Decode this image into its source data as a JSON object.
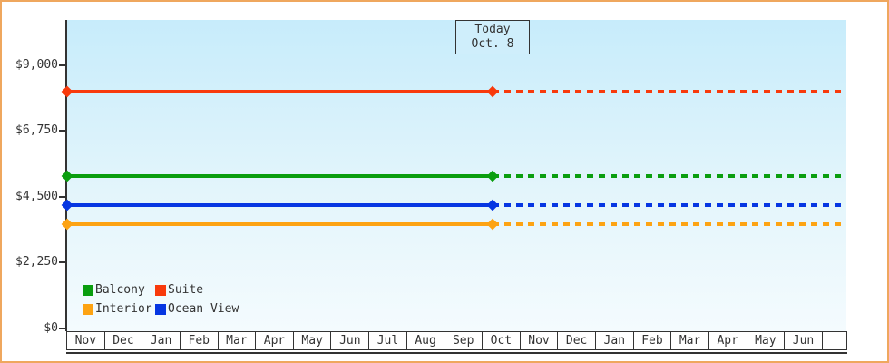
{
  "chart_data": {
    "type": "line",
    "title": "",
    "x_categories": [
      "Nov",
      "Dec",
      "Jan",
      "Feb",
      "Mar",
      "Apr",
      "May",
      "Jun",
      "Jul",
      "Aug",
      "Sep",
      "Oct",
      "Nov",
      "Dec",
      "Jan",
      "Feb",
      "Mar",
      "Apr",
      "May",
      "Jun"
    ],
    "y_axis": {
      "range": [
        0,
        9000
      ],
      "ticks": [
        {
          "label": "$9,000",
          "value": 9000
        },
        {
          "label": "$6,750",
          "value": 6750
        },
        {
          "label": "$4,500",
          "value": 4500
        },
        {
          "label": "$2,250",
          "value": 2250
        },
        {
          "label": "$0",
          "value": 0
        }
      ]
    },
    "series": [
      {
        "name": "Balcony",
        "color": "#0a9e0f",
        "value": 5185
      },
      {
        "name": "Suite",
        "color": "#f83a0c",
        "value": 8070
      },
      {
        "name": "Interior",
        "color": "#fda313",
        "value": 3550
      },
      {
        "name": "Ocean View",
        "color": "#0636e2",
        "value": 4190
      }
    ],
    "today": {
      "label": "Today",
      "date": "Oct. 8",
      "month_index": 11,
      "day_fraction": 0.26
    },
    "legend_position": "bottom-left",
    "grid": false,
    "style_note": "constant price lines; solid before today marker, dashed projection after"
  },
  "frame": {
    "border_color": "#efa75e",
    "background": "#ffffff",
    "plot_gradient_top": "#c7ecfb",
    "plot_gradient_bottom": "#f4fbfe"
  }
}
